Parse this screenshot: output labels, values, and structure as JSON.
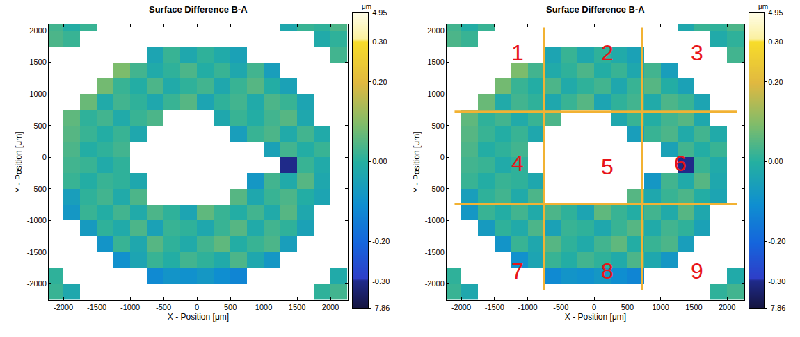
{
  "chart_data": [
    {
      "type": "heatmap",
      "title": "Surface Difference B-A",
      "x_label": "X - Position [μm]",
      "y_label": "Y - Position [μm]",
      "x": [
        -2125,
        -1875,
        -1625,
        -1375,
        -1125,
        -875,
        -625,
        -375,
        -125,
        125,
        375,
        625,
        875,
        1125,
        1375,
        1625,
        1875,
        2125
      ],
      "y": [
        -2125,
        -1875,
        -1625,
        -1375,
        -1125,
        -875,
        -625,
        -375,
        -125,
        125,
        375,
        625,
        875,
        1125,
        1375,
        1625,
        1875,
        2125
      ],
      "z": [
        [
          0.02,
          -0.03,
          null,
          null,
          null,
          null,
          null,
          null,
          null,
          null,
          null,
          null,
          null,
          null,
          null,
          null,
          0.01,
          0.03
        ],
        [
          0.01,
          null,
          null,
          null,
          null,
          null,
          -0.12,
          -0.09,
          -0.1,
          -0.08,
          -0.11,
          -0.13,
          null,
          null,
          null,
          null,
          null,
          -0.02
        ],
        [
          null,
          null,
          null,
          null,
          -0.1,
          -0.04,
          0.02,
          -0.01,
          0.03,
          0.01,
          -0.02,
          0.04,
          -0.03,
          -0.08,
          null,
          null,
          null,
          null
        ],
        [
          null,
          null,
          null,
          -0.09,
          0.02,
          -0.03,
          0.05,
          0.01,
          -0.02,
          0.03,
          0.06,
          -0.01,
          0.02,
          0.04,
          -0.06,
          null,
          null,
          null
        ],
        [
          null,
          null,
          -0.07,
          0.01,
          -0.02,
          0.04,
          -0.05,
          0.02,
          0.01,
          -0.03,
          0.02,
          0.05,
          -0.02,
          0.03,
          0.01,
          -0.05,
          null,
          null
        ],
        [
          null,
          -0.08,
          0.02,
          -0.01,
          0.03,
          -0.02,
          0.04,
          0.01,
          -0.04,
          0.06,
          0.02,
          -0.01,
          0.03,
          -0.02,
          0.05,
          -0.03,
          null,
          null
        ],
        [
          null,
          -0.06,
          0.01,
          0.03,
          -0.02,
          0.04,
          null,
          null,
          null,
          null,
          null,
          0.05,
          -0.03,
          0.02,
          0.04,
          -0.01,
          -0.04,
          null
        ],
        [
          null,
          0.02,
          -0.01,
          0.02,
          0.01,
          -0.03,
          null,
          null,
          null,
          null,
          null,
          null,
          -0.08,
          0.03,
          -0.02,
          0.05,
          -0.03,
          null
        ],
        [
          null,
          0.03,
          0.02,
          -0.02,
          0.01,
          null,
          null,
          null,
          null,
          null,
          null,
          null,
          null,
          null,
          -0.36,
          0.02,
          -0.02,
          null
        ],
        [
          null,
          0.04,
          -0.01,
          0.01,
          0.03,
          null,
          null,
          null,
          null,
          null,
          null,
          null,
          null,
          -0.05,
          0.03,
          -0.01,
          0.02,
          null
        ],
        [
          null,
          0.05,
          0.02,
          -0.01,
          0.02,
          -0.03,
          null,
          null,
          null,
          null,
          null,
          -0.06,
          0.02,
          0.04,
          -0.02,
          0.03,
          -0.02,
          null
        ],
        [
          null,
          0.06,
          0.01,
          0.03,
          -0.02,
          0.02,
          0.04,
          null,
          null,
          null,
          -0.03,
          0.02,
          -0.01,
          0.03,
          0.05,
          -0.03,
          null,
          null
        ],
        [
          null,
          null,
          0.07,
          -0.02,
          0.03,
          0.01,
          -0.03,
          0.02,
          0.05,
          -0.04,
          0.01,
          0.03,
          -0.02,
          0.04,
          0.02,
          -0.04,
          null,
          null
        ],
        [
          null,
          null,
          null,
          0.08,
          0.02,
          -0.01,
          0.04,
          -0.02,
          0.01,
          0.03,
          -0.03,
          0.02,
          0.05,
          -0.01,
          -0.05,
          null,
          null,
          null
        ],
        [
          null,
          null,
          null,
          null,
          0.09,
          0.03,
          -0.02,
          0.01,
          0.04,
          -0.01,
          0.02,
          -0.03,
          0.03,
          -0.06,
          null,
          null,
          null,
          null
        ],
        [
          null,
          null,
          null,
          null,
          null,
          null,
          -0.04,
          0.02,
          -0.03,
          0.01,
          -0.02,
          -0.05,
          null,
          null,
          null,
          null,
          null,
          0.03
        ],
        [
          0.04,
          0.02,
          null,
          null,
          null,
          null,
          null,
          null,
          null,
          null,
          null,
          null,
          null,
          null,
          null,
          null,
          -0.02,
          0.01
        ],
        [
          0.03,
          -0.01,
          0.02,
          null,
          null,
          null,
          null,
          null,
          null,
          null,
          null,
          null,
          null,
          null,
          -0.03,
          0.02,
          0.01,
          0.04
        ]
      ],
      "xlim": [
        -2220,
        2260
      ],
      "ylim": [
        -2260,
        2100
      ],
      "xticks": [
        -2000,
        -1500,
        -1000,
        -500,
        0,
        500,
        1000,
        1500,
        2000
      ],
      "yticks": [
        -2000,
        -1500,
        -1000,
        -500,
        0,
        500,
        1000,
        1500,
        2000
      ],
      "colorbar": {
        "title": "μm",
        "range": [
          -7.86,
          4.95
        ],
        "ticks": [
          -7.86,
          {
            "value": -0.3,
            "label": "-0.30"
          },
          {
            "value": -0.2,
            "label": "-0.20"
          },
          {
            "value": 0,
            "label": "0.00"
          },
          {
            "value": 0.2,
            "label": "0.20"
          },
          {
            "value": 0.3,
            "label": "0.30"
          },
          4.95
        ]
      }
    },
    {
      "type": "heatmap",
      "title": "Surface Difference B-A",
      "x_label": "X - Position [μm]",
      "y_label": "Y - Position [μm]",
      "x": [
        -2125,
        -1875,
        -1625,
        -1375,
        -1125,
        -875,
        -625,
        -375,
        -125,
        125,
        375,
        625,
        875,
        1125,
        1375,
        1625,
        1875,
        2125
      ],
      "y": [
        -2125,
        -1875,
        -1625,
        -1375,
        -1125,
        -875,
        -625,
        -375,
        -125,
        125,
        375,
        625,
        875,
        1125,
        1375,
        1625,
        1875,
        2125
      ],
      "z": [
        [
          0.02,
          -0.03,
          null,
          null,
          null,
          null,
          null,
          null,
          null,
          null,
          null,
          null,
          null,
          null,
          null,
          null,
          0.01,
          0.03
        ],
        [
          0.01,
          null,
          null,
          null,
          null,
          null,
          -0.12,
          -0.09,
          -0.1,
          -0.08,
          -0.11,
          -0.13,
          null,
          null,
          null,
          null,
          null,
          -0.02
        ],
        [
          null,
          null,
          null,
          null,
          -0.1,
          -0.04,
          0.02,
          -0.01,
          0.03,
          0.01,
          -0.02,
          0.04,
          -0.03,
          -0.08,
          null,
          null,
          null,
          null
        ],
        [
          null,
          null,
          null,
          -0.09,
          0.02,
          -0.03,
          0.05,
          0.01,
          -0.02,
          0.03,
          0.06,
          -0.01,
          0.02,
          0.04,
          -0.06,
          null,
          null,
          null
        ],
        [
          null,
          null,
          -0.07,
          0.01,
          -0.02,
          0.04,
          -0.05,
          0.02,
          0.01,
          -0.03,
          0.02,
          0.05,
          -0.02,
          0.03,
          0.01,
          -0.05,
          null,
          null
        ],
        [
          null,
          -0.08,
          0.02,
          -0.01,
          0.03,
          -0.02,
          0.04,
          0.01,
          -0.04,
          0.06,
          0.02,
          -0.01,
          0.03,
          -0.02,
          0.05,
          -0.03,
          null,
          null
        ],
        [
          null,
          -0.06,
          0.01,
          0.03,
          -0.02,
          0.04,
          null,
          null,
          null,
          null,
          null,
          0.05,
          -0.03,
          0.02,
          0.04,
          -0.01,
          -0.04,
          null
        ],
        [
          null,
          0.02,
          -0.01,
          0.02,
          0.01,
          -0.03,
          null,
          null,
          null,
          null,
          null,
          null,
          -0.08,
          0.03,
          -0.02,
          0.05,
          -0.03,
          null
        ],
        [
          null,
          0.03,
          0.02,
          -0.02,
          0.01,
          null,
          null,
          null,
          null,
          null,
          null,
          null,
          null,
          null,
          -0.36,
          0.02,
          -0.02,
          null
        ],
        [
          null,
          0.04,
          -0.01,
          0.01,
          0.03,
          null,
          null,
          null,
          null,
          null,
          null,
          null,
          null,
          -0.05,
          0.03,
          -0.01,
          0.02,
          null
        ],
        [
          null,
          0.05,
          0.02,
          -0.01,
          0.02,
          -0.03,
          null,
          null,
          null,
          null,
          null,
          -0.06,
          0.02,
          0.04,
          -0.02,
          0.03,
          -0.02,
          null
        ],
        [
          null,
          0.06,
          0.01,
          0.03,
          -0.02,
          0.02,
          0.04,
          null,
          null,
          null,
          -0.03,
          0.02,
          -0.01,
          0.03,
          0.05,
          -0.03,
          null,
          null
        ],
        [
          null,
          null,
          0.07,
          -0.02,
          0.03,
          0.01,
          -0.03,
          0.02,
          0.05,
          -0.04,
          0.01,
          0.03,
          -0.02,
          0.04,
          0.02,
          -0.04,
          null,
          null
        ],
        [
          null,
          null,
          null,
          0.08,
          0.02,
          -0.01,
          0.04,
          -0.02,
          0.01,
          0.03,
          -0.03,
          0.02,
          0.05,
          -0.01,
          -0.05,
          null,
          null,
          null
        ],
        [
          null,
          null,
          null,
          null,
          0.09,
          0.03,
          -0.02,
          0.01,
          0.04,
          -0.01,
          0.02,
          -0.03,
          0.03,
          -0.06,
          null,
          null,
          null,
          null
        ],
        [
          null,
          null,
          null,
          null,
          null,
          null,
          -0.04,
          0.02,
          -0.03,
          0.01,
          -0.02,
          -0.05,
          null,
          null,
          null,
          null,
          null,
          0.03
        ],
        [
          0.04,
          0.02,
          null,
          null,
          null,
          null,
          null,
          null,
          null,
          null,
          null,
          null,
          null,
          null,
          null,
          null,
          -0.02,
          0.01
        ],
        [
          0.03,
          -0.01,
          0.02,
          null,
          null,
          null,
          null,
          null,
          null,
          null,
          null,
          null,
          null,
          null,
          -0.03,
          0.02,
          0.01,
          0.04
        ]
      ],
      "xlim": [
        -2220,
        2260
      ],
      "ylim": [
        -2260,
        2100
      ],
      "xticks": [
        -2000,
        -1500,
        -1000,
        -500,
        0,
        500,
        1000,
        1500,
        2000
      ],
      "yticks": [
        -2000,
        -1500,
        -1000,
        -500,
        0,
        500,
        1000,
        1500,
        2000
      ],
      "colorbar": {
        "title": "μm",
        "range": [
          -7.86,
          4.95
        ],
        "ticks": [
          -7.86,
          {
            "value": -0.3,
            "label": "-0.30"
          },
          {
            "value": -0.2,
            "label": "-0.20"
          },
          {
            "value": 0,
            "label": "0.00"
          },
          {
            "value": 0.2,
            "label": "0.20"
          },
          {
            "value": 0.3,
            "label": "0.30"
          },
          4.95
        ]
      },
      "annotations": [
        {
          "text": "1",
          "x": -1150,
          "y": 1650
        },
        {
          "text": "2",
          "x": 200,
          "y": 1650
        },
        {
          "text": "3",
          "x": 1550,
          "y": 1650
        },
        {
          "text": "4",
          "x": -1150,
          "y": -100
        },
        {
          "text": "5",
          "x": 200,
          "y": -150
        },
        {
          "text": "6",
          "x": 1300,
          "y": -100
        },
        {
          "text": "7",
          "x": -1150,
          "y": -1800
        },
        {
          "text": "8",
          "x": 200,
          "y": -1800
        },
        {
          "text": "9",
          "x": 1550,
          "y": -1800
        }
      ],
      "lines": [
        {
          "x": [
            -750,
            -750
          ],
          "y": [
            2050,
            -2100
          ]
        },
        {
          "x": [
            720,
            720
          ],
          "y": [
            2050,
            -2100
          ]
        },
        {
          "x": [
            -2100,
            2150
          ],
          "y": [
            720,
            720
          ]
        },
        {
          "x": [
            -2100,
            2150
          ],
          "y": [
            -740,
            -740
          ]
        }
      ]
    }
  ]
}
